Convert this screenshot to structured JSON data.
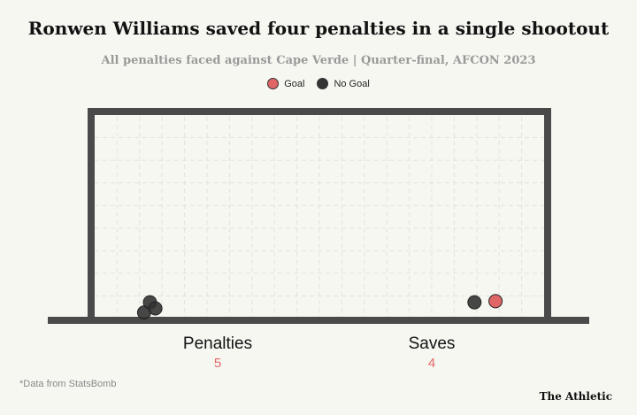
{
  "chart_data": {
    "type": "scatter",
    "title": "Ronwen Williams saved four penalties in a single shootout",
    "subtitle": "All penalties faced against Cape Verde | Quarter-final, AFCON 2023",
    "legend": {
      "placement": "top-center",
      "items": [
        {
          "label": "Goal",
          "color": "#e06666"
        },
        {
          "label": "No Goal",
          "color": "#333333"
        }
      ]
    },
    "goal_area": {
      "x_range": [
        0,
        100
      ],
      "y_range": [
        0,
        100
      ]
    },
    "points": [
      {
        "x": 11.0,
        "y": 3.0,
        "outcome": "No Goal"
      },
      {
        "x": 12.3,
        "y": 8.0,
        "outcome": "No Goal"
      },
      {
        "x": 13.5,
        "y": 5.0,
        "outcome": "No Goal"
      },
      {
        "x": 84.5,
        "y": 8.0,
        "outcome": "No Goal"
      },
      {
        "x": 89.2,
        "y": 8.5,
        "outcome": "Goal"
      }
    ],
    "stats": [
      {
        "label": "Penalties",
        "value": "5"
      },
      {
        "label": "Saves",
        "value": "4"
      }
    ]
  },
  "footnote": "*Data from StatsBomb",
  "brand": "The Athletic",
  "colors": {
    "goal": "#e06666",
    "no_goal": "#333333",
    "frame": "#4a4a4a",
    "grid": "#e3e3dc"
  }
}
